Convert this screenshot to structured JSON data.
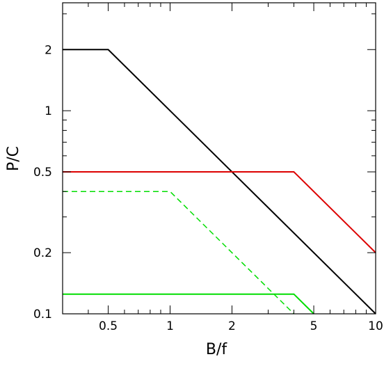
{
  "chart_data": {
    "type": "line",
    "title": "",
    "xlabel": "B/f",
    "ylabel": "P/C",
    "xscale": "log",
    "yscale": "log",
    "xlim": [
      0.3,
      10
    ],
    "ylim": [
      0.1,
      3.4
    ],
    "grid": false,
    "legend": "none",
    "x_ticks": [
      {
        "value": 0.5,
        "label": "0.5"
      },
      {
        "value": 1,
        "label": "1"
      },
      {
        "value": 2,
        "label": "2"
      },
      {
        "value": 5,
        "label": "5"
      },
      {
        "value": 10,
        "label": "10"
      }
    ],
    "x_minor_ticks": [
      0.3,
      0.4,
      0.6,
      0.7,
      0.8,
      0.9,
      3,
      4,
      6,
      7,
      8,
      9
    ],
    "y_ticks": [
      {
        "value": 0.1,
        "label": "0.1"
      },
      {
        "value": 0.2,
        "label": "0.2"
      },
      {
        "value": 0.5,
        "label": "0.5"
      },
      {
        "value": 1,
        "label": "1"
      },
      {
        "value": 2,
        "label": "2"
      }
    ],
    "y_minor_ticks": [
      0.3,
      0.4,
      0.6,
      0.7,
      0.8,
      0.9,
      3
    ],
    "series": [
      {
        "color": "#000000",
        "dash": "solid",
        "width": 2,
        "points": [
          [
            0.3,
            2
          ],
          [
            0.5,
            2
          ],
          [
            10,
            0.1
          ]
        ]
      },
      {
        "color": "#dd0000",
        "dash": "solid",
        "width": 2,
        "points": [
          [
            0.3,
            0.5
          ],
          [
            4,
            0.5
          ],
          [
            10,
            0.2
          ]
        ]
      },
      {
        "color": "#00dd00",
        "dash": "dashed",
        "width": 1.5,
        "points": [
          [
            0.3,
            0.4
          ],
          [
            1,
            0.4
          ],
          [
            4,
            0.1
          ]
        ]
      },
      {
        "color": "#00dd00",
        "dash": "solid",
        "width": 2,
        "points": [
          [
            0.3,
            0.125
          ],
          [
            4,
            0.125
          ],
          [
            5,
            0.1
          ]
        ]
      }
    ]
  }
}
